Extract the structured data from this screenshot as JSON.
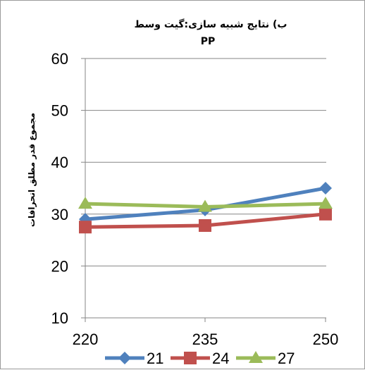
{
  "chart_data": {
    "type": "line",
    "title": "ب) نتایج شبیه سازی:گیت وسط",
    "subtitle": "PP",
    "xlabel": "",
    "ylabel": "مجموع قدر مطلق انحرافات",
    "categories": [
      "220",
      "235",
      "250"
    ],
    "ylim": [
      10,
      60
    ],
    "yticks": [
      10,
      20,
      30,
      40,
      50,
      60
    ],
    "grid": true,
    "legend_position": "bottom",
    "series": [
      {
        "name": "21",
        "values": [
          29,
          30.8,
          35
        ],
        "color": "#4f81bd",
        "marker": "diamond"
      },
      {
        "name": "24",
        "values": [
          27.5,
          27.8,
          30
        ],
        "color": "#c0504d",
        "marker": "square"
      },
      {
        "name": "27",
        "values": [
          32,
          31.4,
          32
        ],
        "color": "#9bbb59",
        "marker": "triangle"
      }
    ]
  }
}
